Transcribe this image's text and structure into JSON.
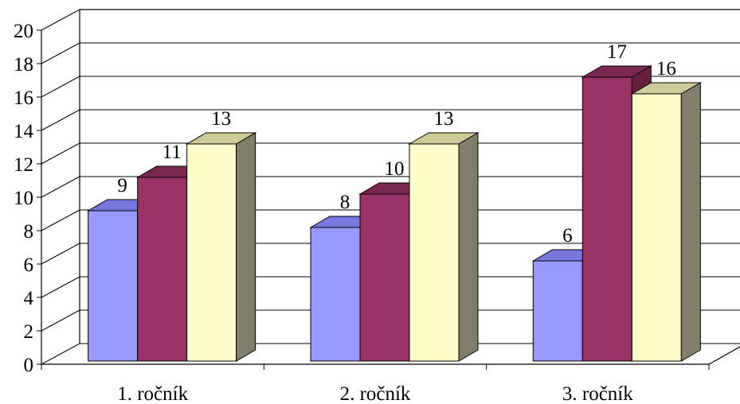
{
  "chart_data": {
    "type": "bar",
    "style": "3d-clustered-column",
    "categories": [
      "1. ročník",
      "2. ročník",
      "3. ročník"
    ],
    "series": [
      {
        "values": [
          9,
          8,
          6
        ],
        "color": "#9999FF",
        "side": "#6666CC",
        "top": "#7777DD"
      },
      {
        "values": [
          11,
          10,
          17
        ],
        "color": "#993366",
        "side": "#66213F",
        "top": "#7A284F"
      },
      {
        "values": [
          13,
          13,
          16
        ],
        "color": "#FFFFCC",
        "side": "#80806A",
        "top": "#CCCC99"
      }
    ],
    "yticks": [
      "0",
      "2",
      "4",
      "6",
      "8",
      "10",
      "12",
      "14",
      "16",
      "18",
      "20"
    ],
    "ylim": [
      0,
      20
    ],
    "grid": true,
    "data_labels": true
  }
}
